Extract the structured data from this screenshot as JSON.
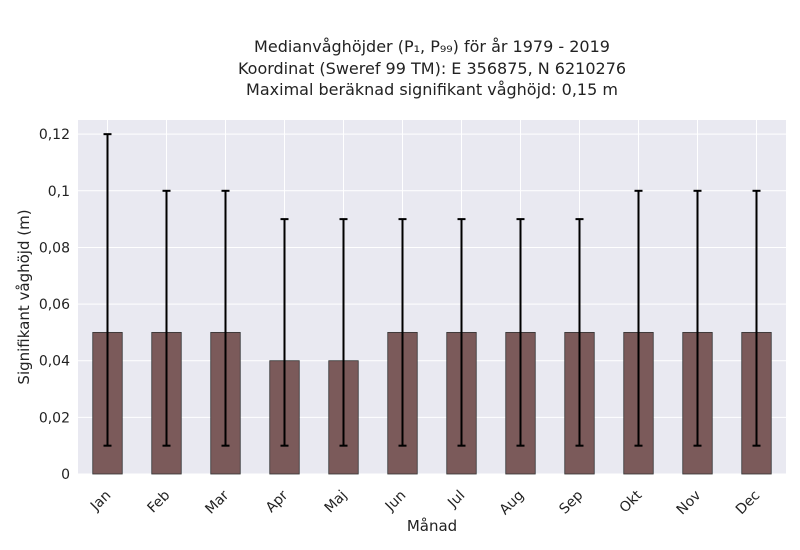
{
  "chart_data": {
    "type": "bar",
    "title_lines": [
      "Medianvåghöjder (P₁, P₉₉) för år 1979 - 2019",
      "Koordinat (Sweref 99 TM): E 356875, N 6210276",
      "Maximal beräknad signifikant våghöjd: 0,15 m"
    ],
    "xlabel": "Månad",
    "ylabel": "Signifikant våghöjd (m)",
    "categories": [
      "Jan",
      "Feb",
      "Mar",
      "Apr",
      "Maj",
      "Jun",
      "Jul",
      "Aug",
      "Sep",
      "Okt",
      "Nov",
      "Dec"
    ],
    "values": [
      0.05,
      0.05,
      0.05,
      0.04,
      0.04,
      0.05,
      0.05,
      0.05,
      0.05,
      0.05,
      0.05,
      0.05
    ],
    "error_low": [
      0.01,
      0.01,
      0.01,
      0.01,
      0.01,
      0.01,
      0.01,
      0.01,
      0.01,
      0.01,
      0.01,
      0.01
    ],
    "error_high": [
      0.12,
      0.1,
      0.1,
      0.09,
      0.09,
      0.09,
      0.09,
      0.09,
      0.09,
      0.1,
      0.1,
      0.1
    ],
    "ylim": [
      0,
      0.125
    ],
    "yticks": [
      0,
      0.02,
      0.04,
      0.06,
      0.08,
      0.1,
      0.12
    ],
    "ytick_labels": [
      "0",
      "0,02",
      "0,04",
      "0,06",
      "0,08",
      "0,1",
      "0,12"
    ],
    "grid": true,
    "colors": {
      "bar": "#7b5a5a",
      "plot_background": "#e9e9f1",
      "grid": "#ffffff",
      "error_bar": "#000000"
    }
  }
}
